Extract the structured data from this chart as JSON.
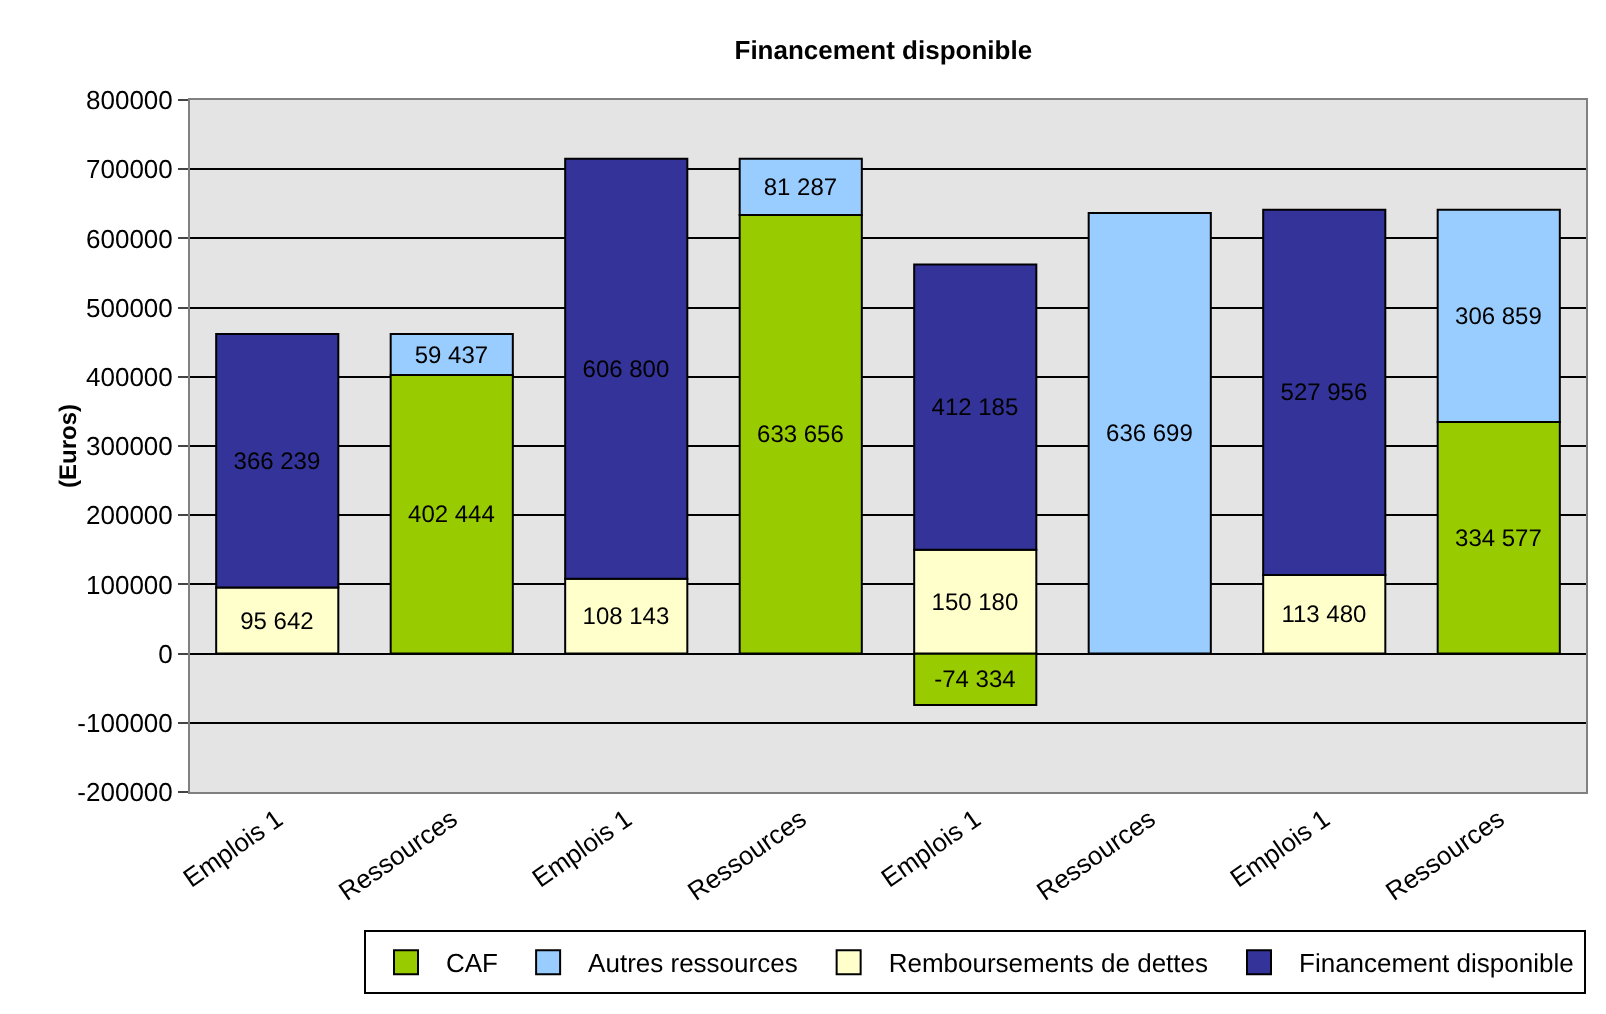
{
  "chart_data": {
    "type": "bar",
    "title": "Financement disponible",
    "ylabel": "(Euros)",
    "stacked": true,
    "data_labels": true,
    "grid": "y",
    "legend": "bottom",
    "categories": [
      "Emplois 1",
      "Ressources",
      "Emplois 1",
      "Ressources",
      "Emplois 1",
      "Ressources",
      "Emplois 1",
      "Ressources"
    ],
    "ylim": [
      -200000,
      800000
    ],
    "yticks": [
      -200000,
      -100000,
      0,
      100000,
      200000,
      300000,
      400000,
      500000,
      600000,
      700000,
      800000
    ],
    "series": [
      {
        "name": "CAF",
        "color": "#99cc00",
        "values": [
          null,
          402444,
          null,
          633656,
          -74334,
          null,
          null,
          334577
        ]
      },
      {
        "name": "Autres ressources",
        "color": "#99ccff",
        "values": [
          null,
          59437,
          null,
          81287,
          null,
          636699,
          null,
          306859
        ]
      },
      {
        "name": "Remboursements de dettes",
        "color": "#ffffcc",
        "values": [
          95642,
          null,
          108143,
          null,
          150180,
          null,
          113480,
          null
        ]
      },
      {
        "name": "Financement disponible",
        "color": "#333399",
        "values": [
          366239,
          null,
          606800,
          null,
          412185,
          null,
          527956,
          null
        ]
      }
    ]
  }
}
